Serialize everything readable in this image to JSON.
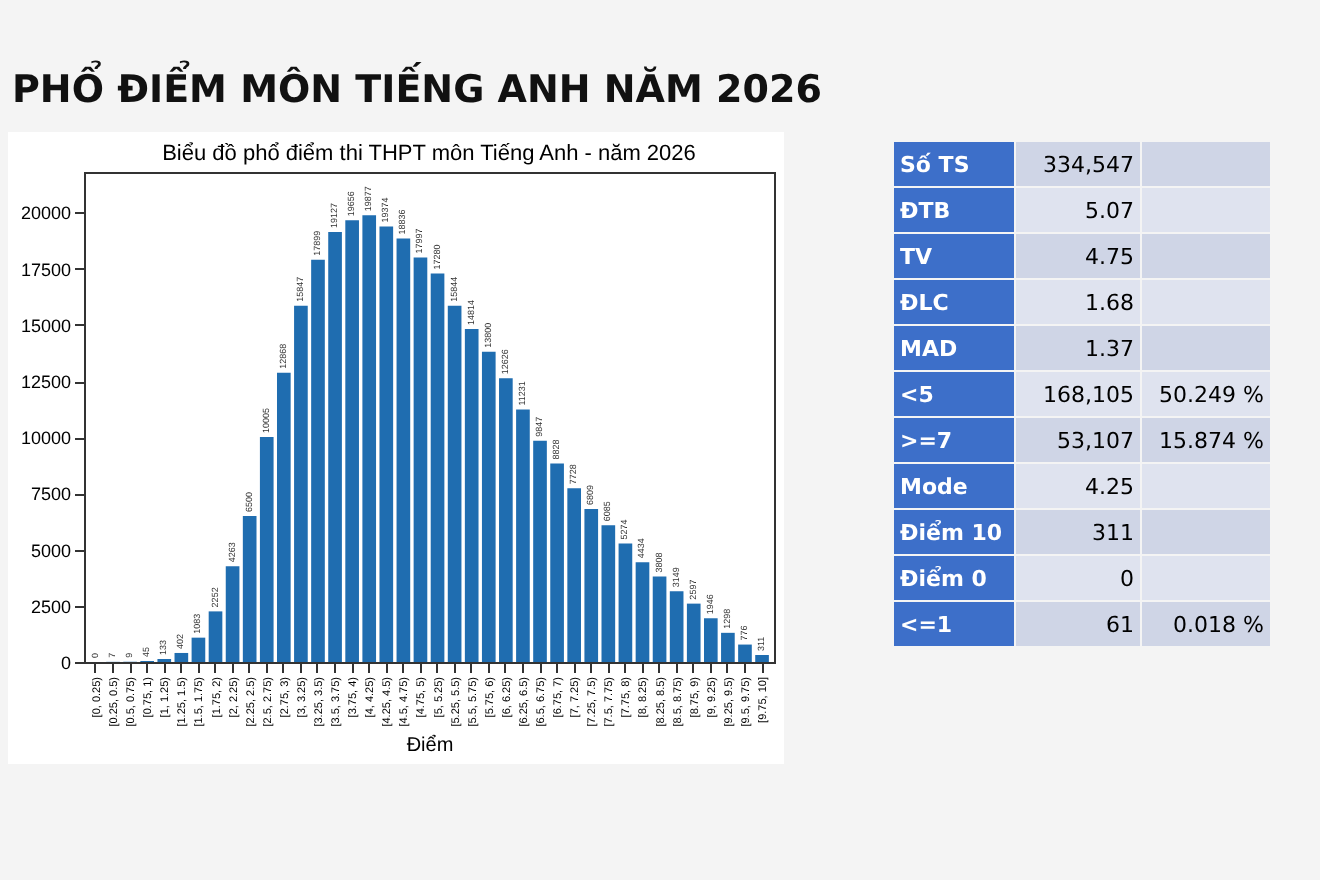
{
  "chart_data": [
    {
      "type": "bar",
      "title": "Biểu đồ phổ điểm thi THPT môn Tiếng Anh - năm 2026",
      "xlabel": "Điểm",
      "annotations": [
        "PHỔ ĐIỂM MÔN TIẾNG ANH NĂM 2026"
      ],
      "categories": [
        "[0, 0.25)",
        "[0.25, 0.5)",
        "[0.5, 0.75)",
        "[0.75, 1)",
        "[1, 1.25)",
        "[1.25, 1.5)",
        "[1.5, 1.75)",
        "[1.75, 2)",
        "[2, 2.25)",
        "[2.25, 2.5)",
        "[2.5, 2.75)",
        "[2.75, 3)",
        "[3, 3.25)",
        "[3.25, 3.5)",
        "[3.5, 3.75)",
        "[3.75, 4)",
        "[4, 4.25)",
        "[4.25, 4.5)",
        "[4.5, 4.75)",
        "[4.75, 5)",
        "[5, 5.25)",
        "[5.25, 5.5)",
        "[5.5, 5.75)",
        "[5.75, 6)",
        "[6, 6.25)",
        "[6.25, 6.5)",
        "[6.5, 6.75)",
        "[6.75, 7)",
        "[7, 7.25)",
        "[7.25, 7.5)",
        "[7.5, 7.75)",
        "[7.75, 8)",
        "[8, 8.25)",
        "[8.25, 8.5)",
        "[8.5, 8.75)",
        "[8.75, 9)",
        "[9, 9.25)",
        "[9.25, 9.5)",
        "[9.5, 9.75)",
        "[9.75, 10]"
      ],
      "values": [
        0,
        7,
        9,
        45,
        133,
        402,
        1083,
        2252,
        4263,
        6500,
        10005,
        12868,
        15847,
        17899,
        19127,
        19656,
        19877,
        19374,
        18836,
        17997,
        17280,
        15844,
        14814,
        13800,
        12626,
        11231,
        9847,
        8828,
        7728,
        6809,
        6085,
        5274,
        4434,
        3808,
        3149,
        2597,
        1946,
        1298,
        776,
        311
      ],
      "color": "#1f6db0",
      "ylim": [
        0,
        21800
      ],
      "yticks": [
        0,
        2500,
        5000,
        7500,
        10000,
        12500,
        15000,
        17500,
        20000
      ],
      "data_labels": true,
      "grid": false
    },
    {
      "type": "other",
      "y_categories": [
        "Số TS",
        "ĐTB",
        "TV",
        "ĐLC",
        "MAD",
        "<5",
        ">=7",
        "Mode",
        "Điểm 10",
        "Điểm 0",
        "<=1"
      ],
      "cell_labels": [
        [
          "334,547",
          null
        ],
        [
          "5.07",
          null
        ],
        [
          "4.75",
          null
        ],
        [
          "1.68",
          null
        ],
        [
          "1.37",
          null
        ],
        [
          "168,105",
          "50.249 %"
        ],
        [
          "53,107",
          "15.874 %"
        ],
        [
          "4.25",
          null
        ],
        [
          "311",
          null
        ],
        [
          "0",
          null
        ],
        [
          "61",
          "0.018 %"
        ]
      ]
    }
  ]
}
